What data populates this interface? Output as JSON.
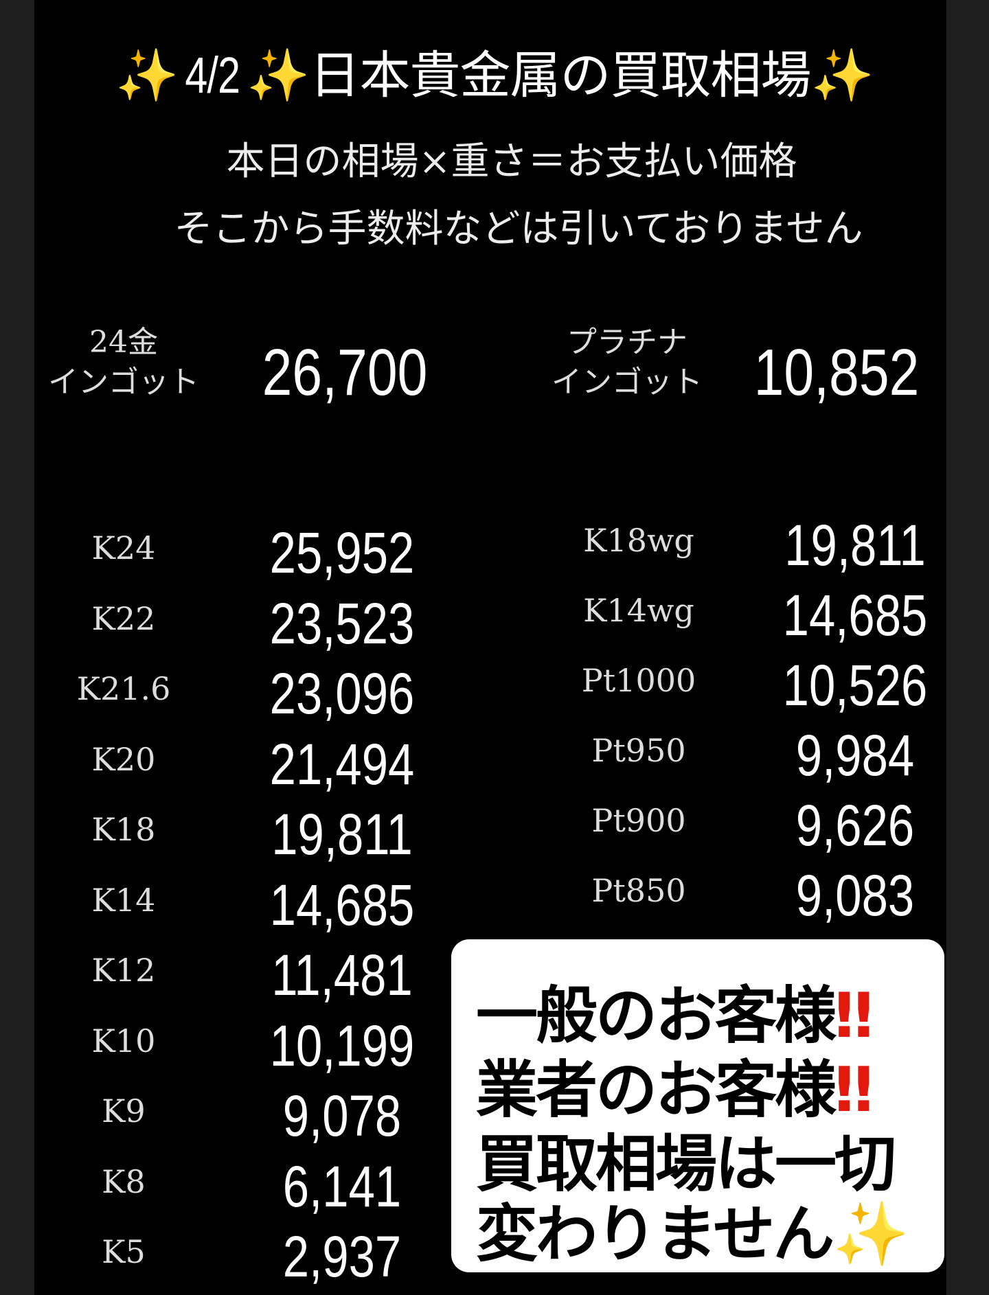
{
  "header": {
    "sparkle_icon": "sparkles",
    "date": "4/2",
    "title": "日本貴金属の買取相場",
    "line1": "本日の相場×重さ＝お支払い価格",
    "line2": "そこから手数料などは引いておりません"
  },
  "ingots": [
    {
      "label_top": "24金",
      "label_bottom": "インゴット",
      "price": "26,700"
    },
    {
      "label_top": "プラチナ",
      "label_bottom": "インゴット",
      "price": "10,852"
    }
  ],
  "gold": [
    {
      "label": "K24",
      "price": "25,952"
    },
    {
      "label": "K22",
      "price": "23,523"
    },
    {
      "label": "K21.6",
      "price": "23,096"
    },
    {
      "label": "K20",
      "price": "21,494"
    },
    {
      "label": "K18",
      "price": "19,811"
    },
    {
      "label": "K14",
      "price": "14,685"
    },
    {
      "label": "K12",
      "price": "11,481"
    },
    {
      "label": "K10",
      "price": "10,199"
    },
    {
      "label": "K9",
      "price": "9,078"
    },
    {
      "label": "K8",
      "price": "6,141"
    },
    {
      "label": "K5",
      "price": "2,937"
    }
  ],
  "others": [
    {
      "label": "K18wg",
      "price": "19,811"
    },
    {
      "label": "K14wg",
      "price": "14,685"
    },
    {
      "label": "Pt1000",
      "price": "10,526"
    },
    {
      "label": "Pt950",
      "price": "9,984"
    },
    {
      "label": "Pt900",
      "price": "9,626"
    },
    {
      "label": "Pt850",
      "price": "9,083"
    }
  ],
  "notice": {
    "line1": "一般のお客様",
    "line2": "業者のお客様",
    "line3": "買取相場は一切",
    "line4": "変わりません",
    "exclaim": "‼",
    "exclaim_color": "#e3180f",
    "sparkle": "✨"
  }
}
